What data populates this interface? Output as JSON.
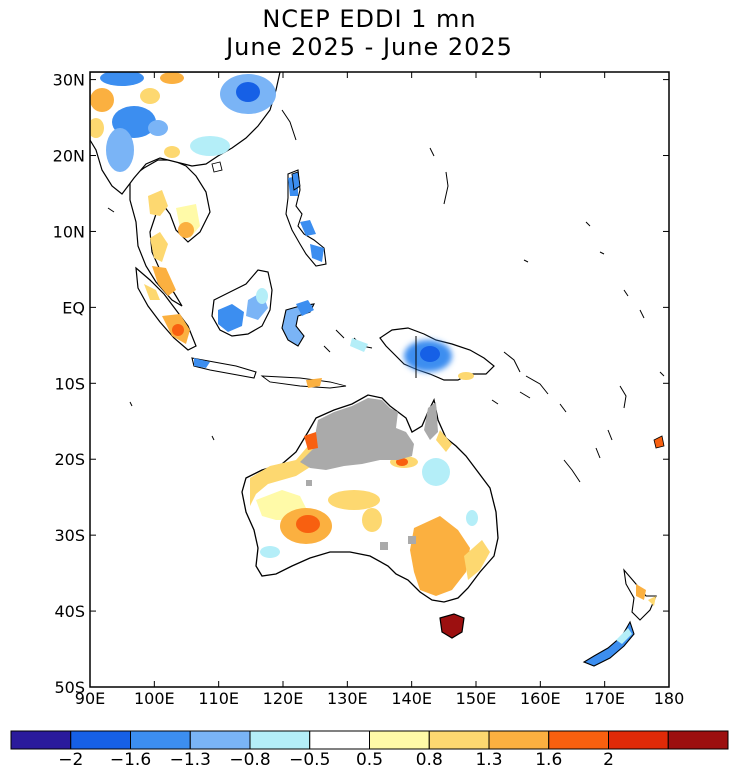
{
  "title": {
    "line1": "NCEP EDDI 1 mn",
    "line2": "June 2025 - June 2025"
  },
  "map": {
    "lon_labels": [
      "90E",
      "100E",
      "110E",
      "120E",
      "130E",
      "140E",
      "150E",
      "160E",
      "170E",
      "180"
    ],
    "lat_labels": [
      "30N",
      "20N",
      "10N",
      "EQ",
      "10S",
      "20S",
      "30S",
      "40S",
      "50S"
    ],
    "lon_range": [
      90,
      180
    ],
    "lat_range": [
      -50,
      31
    ],
    "missing_data_color": "#aaaaaa",
    "coastline_color": "#000000"
  },
  "colorbar": {
    "colors": [
      "#2a1a9c",
      "#1660e6",
      "#3c8ef0",
      "#7ab4f6",
      "#b4eef8",
      "#ffffff",
      "#fffaa8",
      "#fdd870",
      "#fbb040",
      "#f86010",
      "#e02a08",
      "#9c1010"
    ],
    "labels": [
      "-2",
      "-1.6",
      "-1.3",
      "-0.8",
      "-0.5",
      "0.5",
      "0.8",
      "1.3",
      "1.6",
      "2"
    ]
  }
}
